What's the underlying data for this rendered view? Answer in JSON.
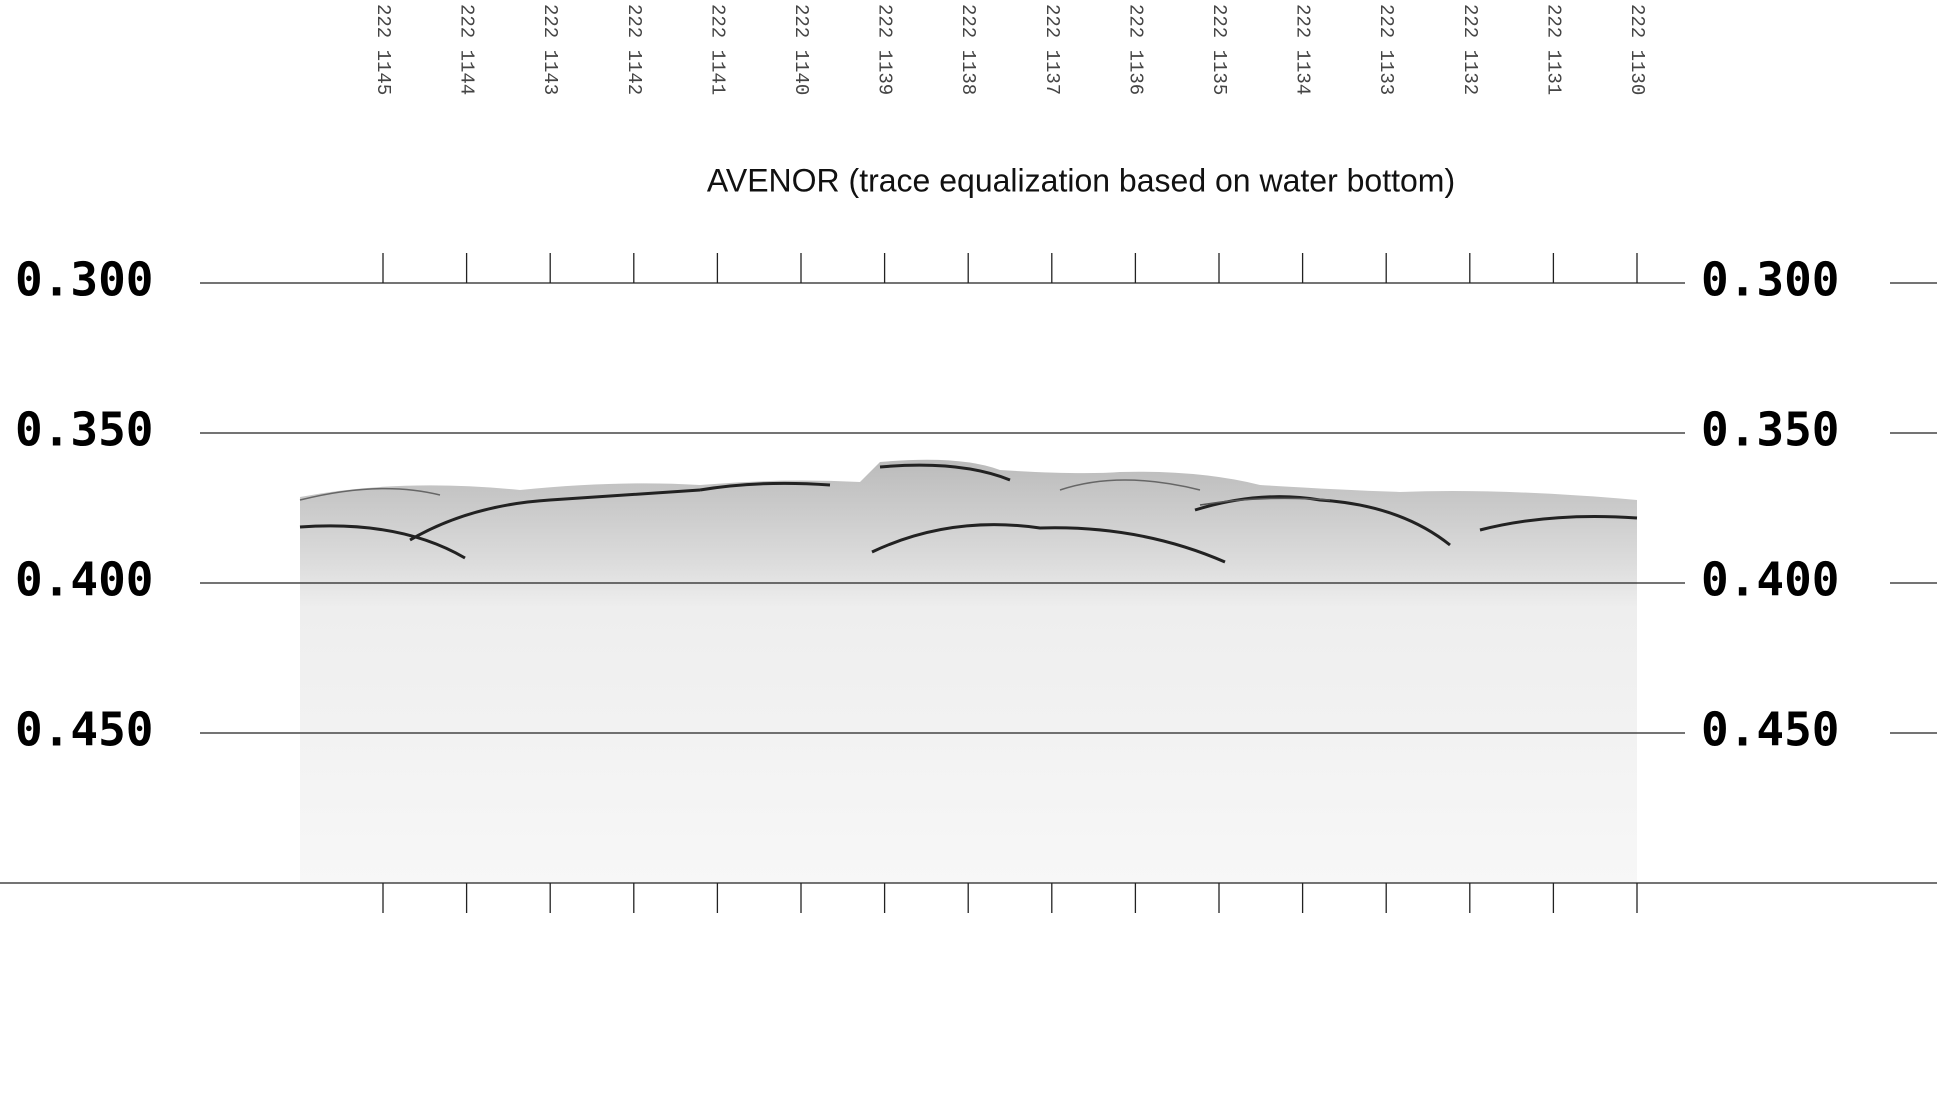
{
  "chart_data": {
    "type": "seismic",
    "title": "AVENOR (trace equalization based on water bottom)",
    "categories": [
      "222 1145",
      "222 1144",
      "222 1143",
      "222 1142",
      "222 1141",
      "222 1140",
      "222 1139",
      "222 1138",
      "222 1137",
      "222 1136",
      "222 1135",
      "222 1134",
      "222 1133",
      "222 1132",
      "222 1131",
      "222 1130"
    ],
    "ylim": [
      0.3,
      0.5
    ],
    "yticks": [
      {
        "value": 0.3,
        "label": "0.300"
      },
      {
        "value": 0.35,
        "label": "0.350"
      },
      {
        "value": 0.4,
        "label": "0.400"
      },
      {
        "value": 0.45,
        "label": "0.450"
      }
    ],
    "grid": true
  }
}
